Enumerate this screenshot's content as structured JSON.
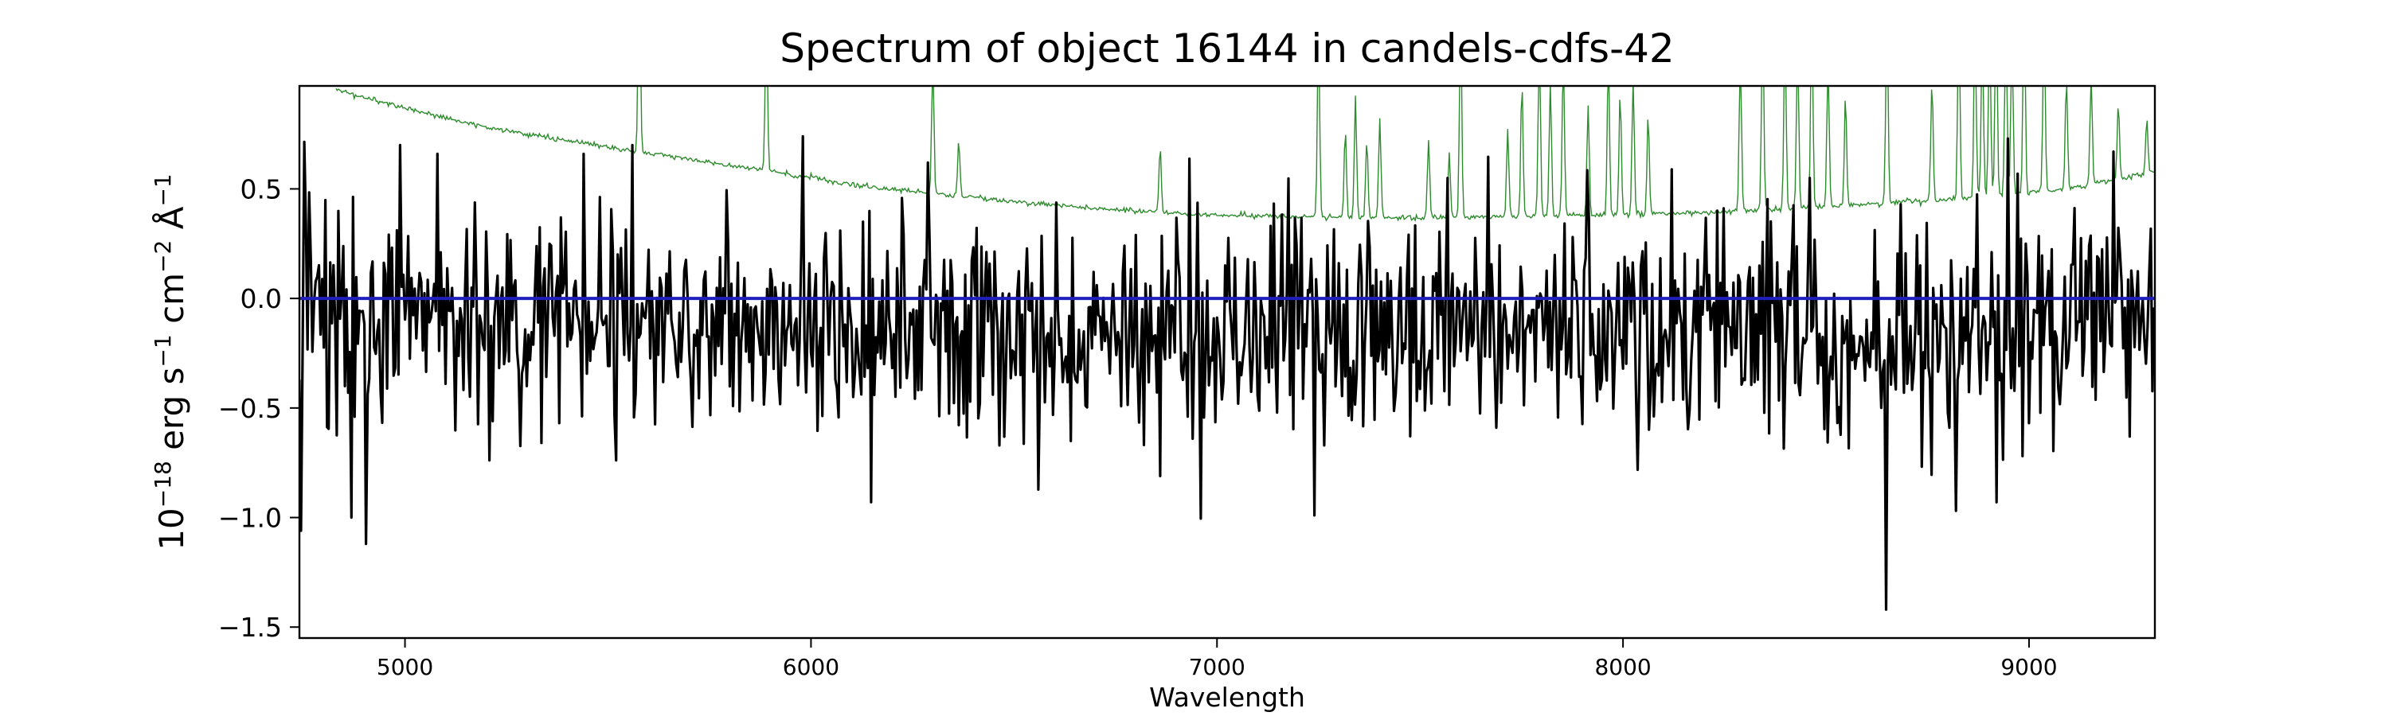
{
  "chart_data": {
    "type": "line",
    "title": "Spectrum of object 16144 in candels-cdfs-42",
    "xlabel": "Wavelength",
    "ylabel_parts": [
      "10",
      "−18",
      " erg s",
      "−1",
      " cm",
      "−2",
      " Å",
      "−1"
    ],
    "xlim": [
      4740,
      9310
    ],
    "ylim": [
      -1.55,
      0.97
    ],
    "x_ticks": [
      5000,
      6000,
      7000,
      8000,
      9000
    ],
    "x_tick_labels": [
      "5000",
      "6000",
      "7000",
      "8000",
      "9000"
    ],
    "y_ticks": [
      -1.5,
      -1.0,
      -0.5,
      0.0,
      0.5
    ],
    "y_tick_labels": [
      "−1.5",
      "−1.0",
      "−0.5",
      "0.0",
      "0.5"
    ],
    "grid": false,
    "series": [
      {
        "role": "flux",
        "color": "#000000",
        "x_range": [
          4740,
          9310
        ],
        "sampling_step": 4,
        "baseline": -0.12,
        "noise_sigma": 0.26,
        "extrema": [
          {
            "x": 4745,
            "y": -1.06
          },
          {
            "x": 4905,
            "y": -1.12
          },
          {
            "x": 4870,
            "y": -1.0
          },
          {
            "x": 4990,
            "y": 0.7
          },
          {
            "x": 5080,
            "y": 0.66
          },
          {
            "x": 5440,
            "y": 0.66
          },
          {
            "x": 5560,
            "y": 0.7
          },
          {
            "x": 6150,
            "y": -0.93
          },
          {
            "x": 6290,
            "y": 0.62
          },
          {
            "x": 7240,
            "y": -0.99
          },
          {
            "x": 7570,
            "y": 0.55
          },
          {
            "x": 8460,
            "y": 0.55
          },
          {
            "x": 8650,
            "y": -1.42
          },
          {
            "x": 8920,
            "y": -0.93
          },
          {
            "x": 8950,
            "y": 0.73
          },
          {
            "x": 9210,
            "y": 0.67
          }
        ]
      },
      {
        "role": "noise",
        "color": "#2e8b2e",
        "continuum": [
          {
            "x": 4830,
            "y": 0.95
          },
          {
            "x": 5000,
            "y": 0.87
          },
          {
            "x": 5200,
            "y": 0.78
          },
          {
            "x": 5500,
            "y": 0.69
          },
          {
            "x": 5800,
            "y": 0.61
          },
          {
            "x": 6100,
            "y": 0.52
          },
          {
            "x": 6400,
            "y": 0.46
          },
          {
            "x": 6700,
            "y": 0.41
          },
          {
            "x": 7000,
            "y": 0.38
          },
          {
            "x": 7300,
            "y": 0.37
          },
          {
            "x": 7600,
            "y": 0.37
          },
          {
            "x": 7900,
            "y": 0.38
          },
          {
            "x": 8200,
            "y": 0.39
          },
          {
            "x": 8500,
            "y": 0.42
          },
          {
            "x": 8800,
            "y": 0.45
          },
          {
            "x": 9100,
            "y": 0.5
          },
          {
            "x": 9310,
            "y": 0.58
          }
        ],
        "sky_lines": [
          {
            "x": 5577,
            "height": 0.9
          },
          {
            "x": 5890,
            "height": 0.75
          },
          {
            "x": 6300,
            "height": 0.6
          },
          {
            "x": 6364,
            "height": 0.25
          },
          {
            "x": 6860,
            "height": 0.3
          },
          {
            "x": 7250,
            "height": 0.85
          },
          {
            "x": 7316,
            "height": 0.4
          },
          {
            "x": 7341,
            "height": 0.55
          },
          {
            "x": 7369,
            "height": 0.35
          },
          {
            "x": 7401,
            "height": 0.45
          },
          {
            "x": 7521,
            "height": 0.35
          },
          {
            "x": 7572,
            "height": 0.3
          },
          {
            "x": 7600,
            "height": 0.9
          },
          {
            "x": 7716,
            "height": 0.4
          },
          {
            "x": 7751,
            "height": 0.6
          },
          {
            "x": 7794,
            "height": 0.8
          },
          {
            "x": 7821,
            "height": 0.6
          },
          {
            "x": 7853,
            "height": 0.7
          },
          {
            "x": 7914,
            "height": 0.5
          },
          {
            "x": 7964,
            "height": 0.7
          },
          {
            "x": 7993,
            "height": 0.55
          },
          {
            "x": 8025,
            "height": 0.6
          },
          {
            "x": 8062,
            "height": 0.45
          },
          {
            "x": 8289,
            "height": 0.7
          },
          {
            "x": 8344,
            "height": 0.9
          },
          {
            "x": 8399,
            "height": 0.8
          },
          {
            "x": 8430,
            "height": 0.75
          },
          {
            "x": 8465,
            "height": 0.9
          },
          {
            "x": 8505,
            "height": 0.65
          },
          {
            "x": 8548,
            "height": 0.5
          },
          {
            "x": 8650,
            "height": 0.9
          },
          {
            "x": 8761,
            "height": 0.55
          },
          {
            "x": 8827,
            "height": 0.85
          },
          {
            "x": 8867,
            "height": 0.8
          },
          {
            "x": 8885,
            "height": 0.75
          },
          {
            "x": 8903,
            "height": 0.8
          },
          {
            "x": 8919,
            "height": 0.9
          },
          {
            "x": 8943,
            "height": 0.8
          },
          {
            "x": 8958,
            "height": 0.7
          },
          {
            "x": 8988,
            "height": 0.9
          },
          {
            "x": 9037,
            "height": 0.8
          },
          {
            "x": 9092,
            "height": 0.5
          },
          {
            "x": 9153,
            "height": 0.5
          },
          {
            "x": 9220,
            "height": 0.35
          },
          {
            "x": 9290,
            "height": 0.25
          }
        ]
      },
      {
        "role": "zero-line",
        "color": "#1f1fbf",
        "y": 0.0
      }
    ]
  }
}
